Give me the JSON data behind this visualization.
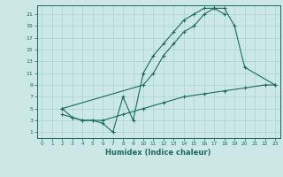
{
  "xlabel": "Humidex (Indice chaleur)",
  "ylabel": "",
  "color": "#1a6b5a",
  "bg_color": "#cce8e5",
  "grid_color": "#aad4cf",
  "xlim": [
    -0.5,
    23.5
  ],
  "ylim": [
    0,
    22.5
  ],
  "xticks": [
    0,
    1,
    2,
    3,
    4,
    5,
    6,
    7,
    8,
    9,
    10,
    11,
    12,
    13,
    14,
    15,
    16,
    17,
    18,
    19,
    20,
    21,
    22,
    23
  ],
  "yticks": [
    1,
    3,
    5,
    7,
    9,
    11,
    13,
    15,
    17,
    19,
    21
  ],
  "line1_x": [
    2,
    3,
    4,
    5,
    6,
    7,
    8,
    9,
    10,
    11,
    12,
    13,
    14,
    15,
    16,
    17,
    18
  ],
  "line1_y": [
    5,
    3.5,
    3,
    3,
    2.5,
    1,
    7,
    3,
    11,
    14,
    16,
    18,
    20,
    21,
    22,
    22,
    21
  ],
  "line2_x": [
    2,
    10,
    11,
    12,
    13,
    14,
    15,
    16,
    17,
    18,
    19,
    20,
    23
  ],
  "line2_y": [
    5,
    9,
    11,
    14,
    16,
    18,
    19,
    21,
    22,
    22,
    19,
    12,
    9
  ],
  "line3_x": [
    2,
    3,
    4,
    5,
    6,
    8,
    10,
    12,
    14,
    16,
    18,
    20,
    22,
    23
  ],
  "line3_y": [
    4,
    3.5,
    3,
    3,
    3,
    4,
    5,
    6,
    7,
    7.5,
    8,
    8.5,
    9,
    9
  ]
}
